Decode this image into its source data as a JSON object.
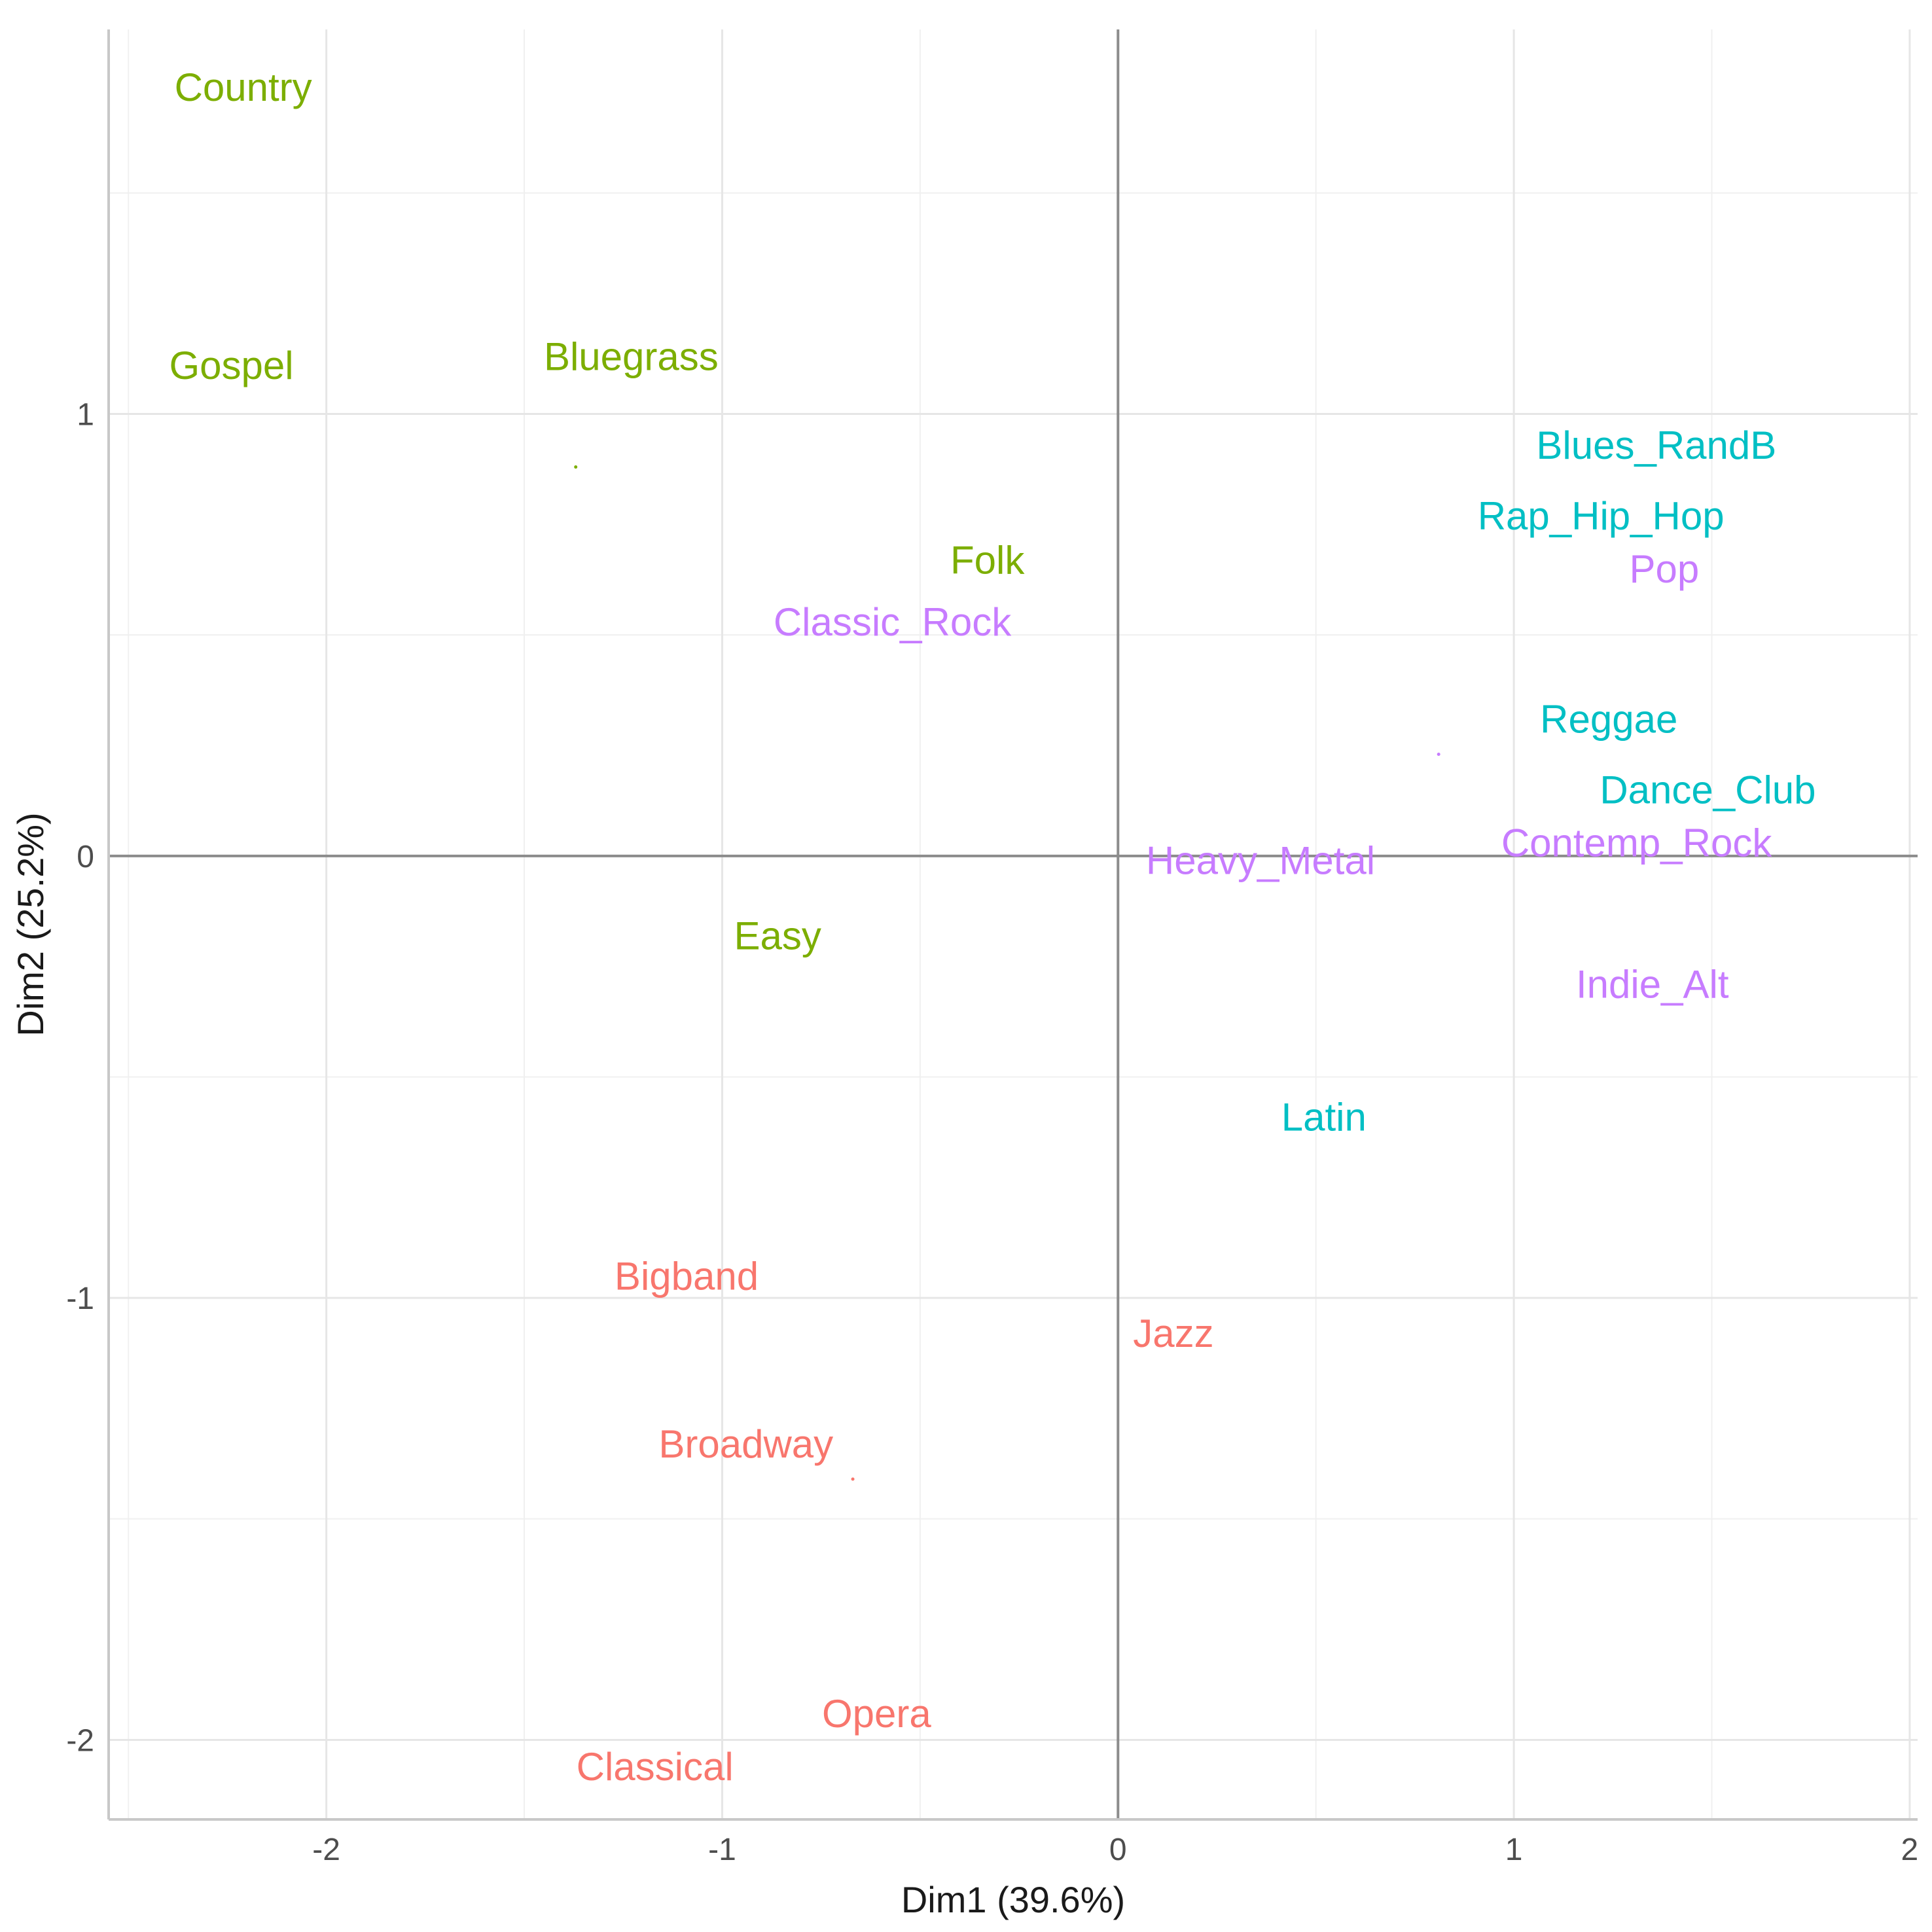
{
  "chart_data": {
    "type": "scatter",
    "title": "",
    "xlabel": "Dim1 (39.6%)",
    "ylabel": "Dim2 (25.2%)",
    "xlim": [
      -2.55,
      2.02
    ],
    "ylim": [
      -2.18,
      1.87
    ],
    "x_ticks": [
      -2,
      -1,
      0,
      1,
      2
    ],
    "y_ticks": [
      -2,
      -1,
      0,
      1
    ],
    "x_tick_labels": [
      "-2",
      "-1",
      "0",
      "1",
      "2"
    ],
    "y_tick_labels": [
      "-2",
      "-1",
      "0",
      "1"
    ],
    "grid": true,
    "legend": "none",
    "colors": {
      "g1": "#f8766d",
      "g2": "#7cae00",
      "g3": "#00bfc4",
      "g4": "#c77cff"
    },
    "points": [
      {
        "label": "Country",
        "x": -2.21,
        "y": 1.74,
        "group": "g2"
      },
      {
        "label": "Gospel",
        "x": -2.24,
        "y": 1.11,
        "group": "g2"
      },
      {
        "label": "Bluegrass",
        "x": -1.23,
        "y": 1.13,
        "group": "g2"
      },
      {
        "label": "Folk",
        "x": -0.33,
        "y": 0.67,
        "group": "g2"
      },
      {
        "label": "Easy",
        "x": -0.86,
        "y": -0.18,
        "group": "g2"
      },
      {
        "label": "Classic_Rock",
        "x": -0.57,
        "y": 0.53,
        "group": "g4"
      },
      {
        "label": "Heavy_Metal",
        "x": 0.36,
        "y": -0.01,
        "group": "g4"
      },
      {
        "label": "Contemp_Rock",
        "x": 1.31,
        "y": 0.03,
        "group": "g4"
      },
      {
        "label": "Pop",
        "x": 1.38,
        "y": 0.65,
        "group": "g4"
      },
      {
        "label": "Indie_Alt",
        "x": 1.35,
        "y": -0.29,
        "group": "g4"
      },
      {
        "label": "Blues_RandB",
        "x": 1.36,
        "y": 0.93,
        "group": "g3"
      },
      {
        "label": "Rap_Hip_Hop",
        "x": 1.22,
        "y": 0.77,
        "group": "g3"
      },
      {
        "label": "Reggae",
        "x": 1.24,
        "y": 0.31,
        "group": "g3"
      },
      {
        "label": "Dance_Club",
        "x": 1.49,
        "y": 0.15,
        "group": "g3"
      },
      {
        "label": "Latin",
        "x": 0.52,
        "y": -0.59,
        "group": "g3"
      },
      {
        "label": "Bigband",
        "x": -1.09,
        "y": -0.95,
        "group": "g1"
      },
      {
        "label": "Jazz",
        "x": 0.14,
        "y": -1.08,
        "group": "g1"
      },
      {
        "label": "Broadway",
        "x": -0.94,
        "y": -1.33,
        "group": "g1"
      },
      {
        "label": "Opera",
        "x": -0.61,
        "y": -1.94,
        "group": "g1"
      },
      {
        "label": "Classical",
        "x": -1.17,
        "y": -2.06,
        "group": "g1"
      }
    ],
    "centroids": [
      {
        "x": -1.37,
        "y": 0.88,
        "group": "g2"
      },
      {
        "x": 0.81,
        "y": 0.23,
        "group": "g4"
      },
      {
        "x": -0.67,
        "y": -1.41,
        "group": "g1"
      }
    ]
  }
}
